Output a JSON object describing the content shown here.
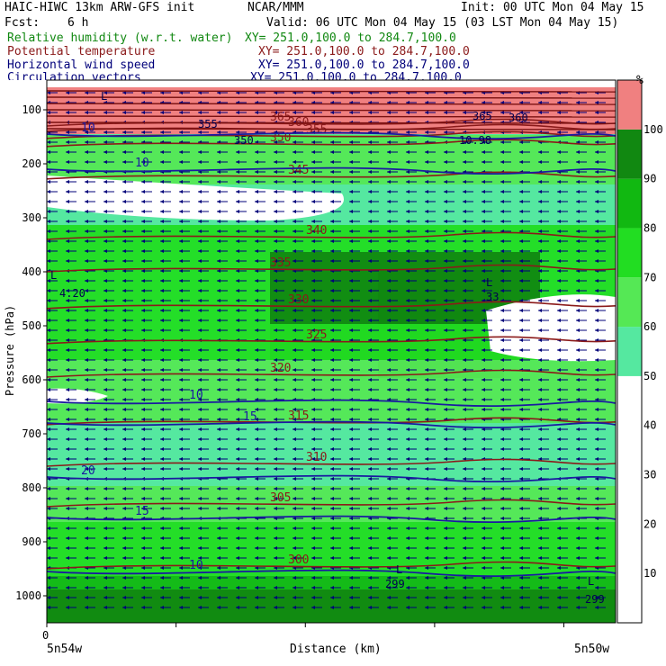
{
  "header": {
    "left1": "HAIC-HIWC 13km ARW-GFS init",
    "center1": "NCAR/MMM",
    "right1": "Init: 00 UTC Mon 04 May 15",
    "fcst_label": "Fcst:",
    "fcst_value": "6 h",
    "valid": "Valid: 06 UTC Mon 04 May 15 (03 LST Mon 04 May 15)",
    "legend": [
      {
        "label": "Relative humidity (w.r.t. water)",
        "xy": "XY= 251.0,100.0 to 284.7,100.0",
        "color": "#118811"
      },
      {
        "label": "Potential temperature",
        "xy": "XY= 251.0,100.0 to 284.7,100.0",
        "color": "#8b1a1a"
      },
      {
        "label": "Horizontal wind speed",
        "xy": "XY= 251.0,100.0 to 284.7,100.0",
        "color": "#00007a"
      },
      {
        "label": "Circulation vectors",
        "xy": "XY= 251.0,100.0 to 284.7,100.0",
        "color": "#00007a"
      }
    ]
  },
  "chart_data": {
    "type": "heatmap",
    "ylabel": "Pressure (hPa)",
    "xlabel": "Distance (km)",
    "x_start_tick": "0",
    "x_left_label": "5n54w",
    "x_right_label": "5n50w",
    "y_ticks": [
      100,
      200,
      300,
      400,
      500,
      600,
      700,
      800,
      900,
      1000
    ],
    "ylim": [
      1050,
      70
    ],
    "colorbar": {
      "unit": "%",
      "ticks": [
        10,
        20,
        30,
        40,
        50,
        60,
        70,
        80,
        90,
        100
      ],
      "levels": [
        {
          "from": 0,
          "to": 50,
          "color": "#ffffff"
        },
        {
          "from": 50,
          "to": 60,
          "color": "#55e8a0"
        },
        {
          "from": 60,
          "to": 70,
          "color": "#55e855"
        },
        {
          "from": 70,
          "to": 80,
          "color": "#22dd22"
        },
        {
          "from": 80,
          "to": 90,
          "color": "#11b811"
        },
        {
          "from": 90,
          "to": 100,
          "color": "#118811"
        },
        {
          "from": 100,
          "to": 110,
          "color": "#f08080"
        }
      ]
    },
    "theta_contours": [
      {
        "value": 365,
        "p": 125
      },
      {
        "value": 360,
        "p": 135
      },
      {
        "value": 355,
        "p": 148
      },
      {
        "value": 350,
        "p": 163
      },
      {
        "value": 345,
        "p": 223
      },
      {
        "value": 340,
        "p": 335
      },
      {
        "value": 335,
        "p": 395
      },
      {
        "value": 330,
        "p": 463
      },
      {
        "value": 325,
        "p": 528
      },
      {
        "value": 320,
        "p": 590
      },
      {
        "value": 315,
        "p": 678
      },
      {
        "value": 310,
        "p": 755
      },
      {
        "value": 305,
        "p": 830
      },
      {
        "value": 300,
        "p": 945
      }
    ],
    "wind_speed_contours": [
      {
        "value": 10,
        "p": 145
      },
      {
        "value": 10,
        "p": 210
      },
      {
        "value": 10,
        "p": 640
      },
      {
        "value": 15,
        "p": 680
      },
      {
        "value": 20,
        "p": 780
      },
      {
        "value": 15,
        "p": 855
      },
      {
        "value": 10,
        "p": 955
      }
    ],
    "annotations": [
      "L",
      "365",
      "360",
      "355",
      "350",
      "10.98",
      "L",
      "4.20",
      "L",
      "33",
      "L",
      "299",
      "L",
      "299"
    ]
  }
}
